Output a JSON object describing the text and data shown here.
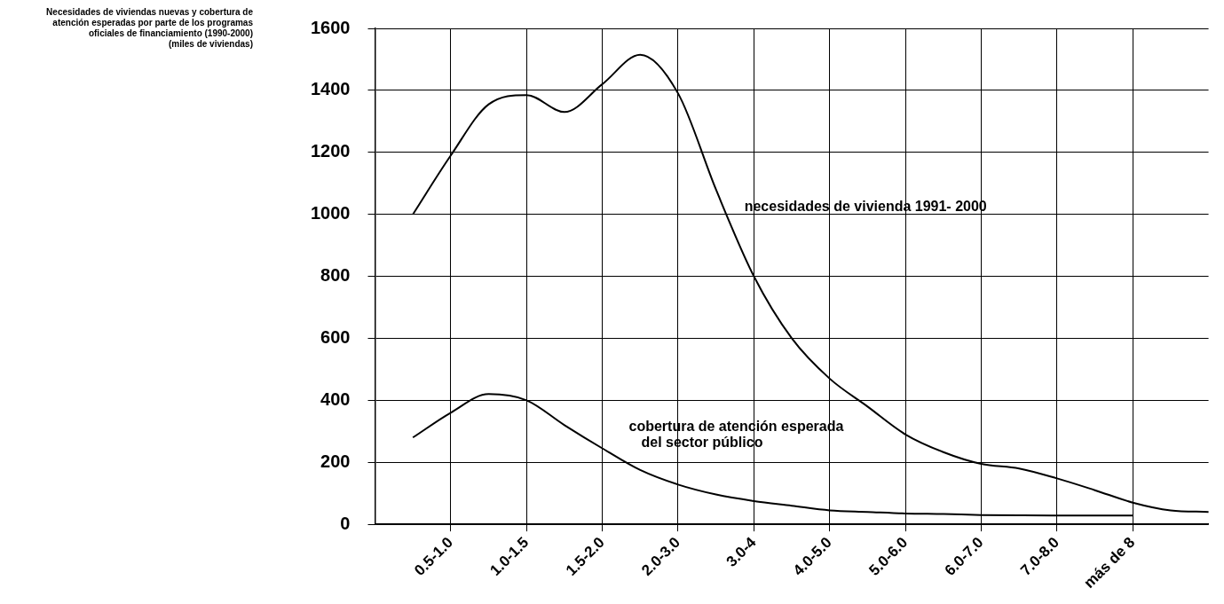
{
  "chart_data": {
    "type": "line",
    "title": "Necesidades de viviendas nuevas y cobertura de atención esperadas por parte de los programas oficiales de financiamiento (1990-2000)",
    "subtitle": "(miles de viviendas)",
    "categories": [
      null,
      null,
      "0.5-1.0",
      null,
      "1.0-1.5",
      null,
      "1.5-2.0",
      null,
      "2.0-3.0",
      null,
      "3.0-4",
      null,
      "4.0-5.0",
      null,
      "5.0-6.0",
      null,
      "6.0-7.0",
      null,
      "7.0-8.0",
      null,
      "más de 8",
      null,
      null
    ],
    "ylim": [
      0,
      1600
    ],
    "yticks": [
      0,
      200,
      400,
      600,
      800,
      1000,
      1200,
      1400,
      1600
    ],
    "grid": true,
    "legend": false,
    "marker": "none",
    "line_style": "solid",
    "series": [
      {
        "name": "necesidades de vivienda 1991- 2000",
        "color": "#000000",
        "values": [
          null,
          1000,
          1190,
          1355,
          1385,
          1330,
          1420,
          1515,
          1390,
          1080,
          800,
          600,
          470,
          380,
          290,
          233,
          195,
          180,
          148,
          110,
          70,
          45,
          40
        ]
      },
      {
        "name": "cobertura de atención esperada del sector público",
        "color": "#000000",
        "values": [
          null,
          280,
          360,
          420,
          400,
          320,
          245,
          175,
          128,
          96,
          75,
          60,
          45,
          40,
          35,
          33,
          30,
          29,
          28,
          28,
          28,
          null,
          null
        ]
      }
    ]
  }
}
